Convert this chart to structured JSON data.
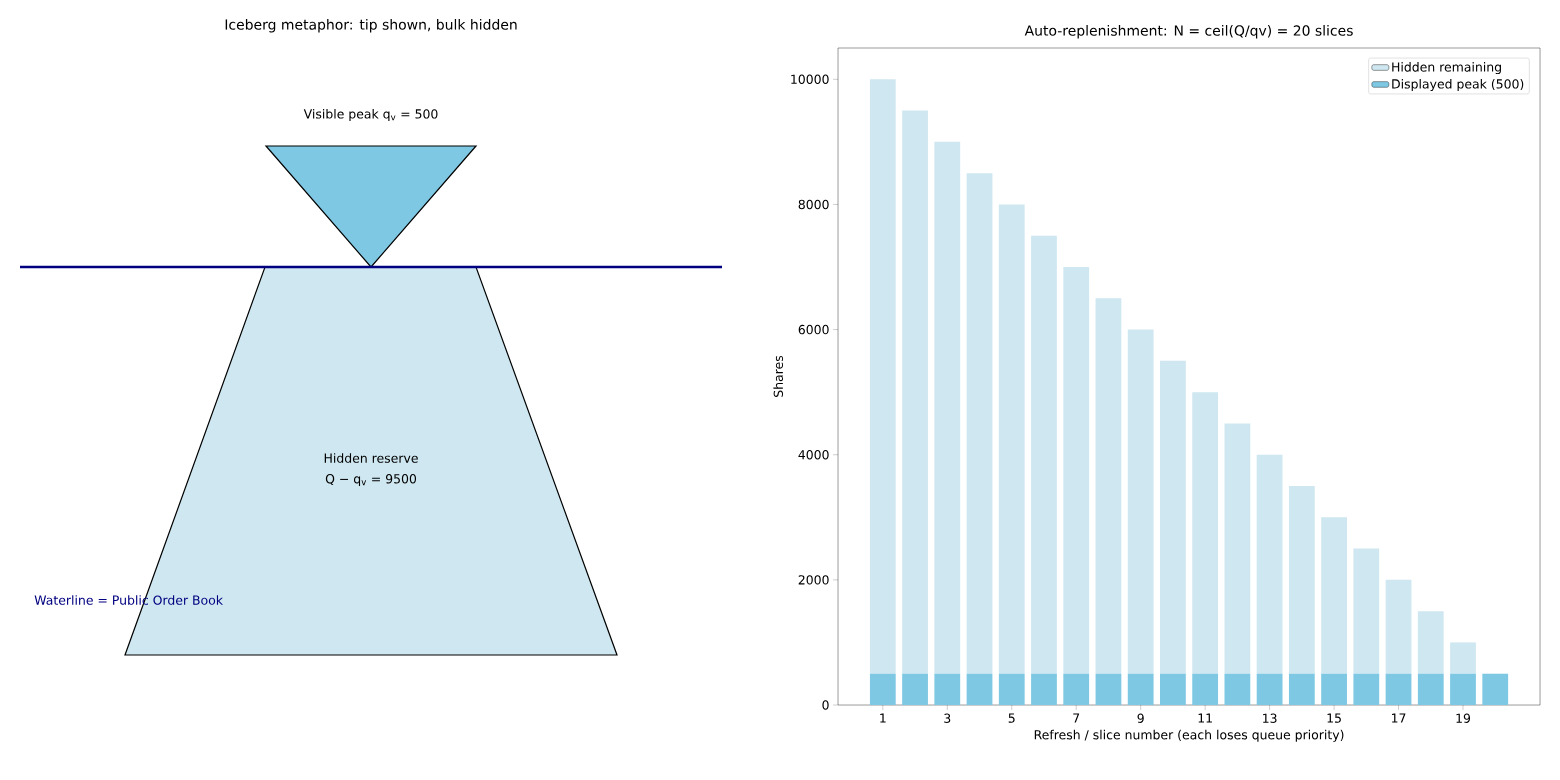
{
  "chart_data": [
    {
      "type": "other",
      "title": "Iceberg metaphor: tip shown, bulk hidden",
      "annotations": [
        "Visible peak q$_{v}$ = 500",
        "Hidden reserve",
        "Q − q$_{v}$ = 9500",
        "Waterline = Public Order Book"
      ]
    },
    {
      "type": "bar",
      "stacked": true,
      "title": "Auto-replenishment: N = ceil(Q/qv) = 20 slices",
      "xlabel": "Refresh / slice number (each loses queue priority)",
      "ylabel": "Shares",
      "x": [
        1,
        2,
        3,
        4,
        5,
        6,
        7,
        8,
        9,
        10,
        11,
        12,
        13,
        14,
        15,
        16,
        17,
        18,
        19,
        20
      ],
      "xlim": [
        -0.39,
        21.39
      ],
      "xticks": [
        1,
        3,
        5,
        7,
        9,
        11,
        13,
        15,
        17,
        19
      ],
      "ylim": [
        0,
        10500
      ],
      "yticks": [
        0,
        2000,
        4000,
        6000,
        8000,
        10000
      ],
      "legend": "top right",
      "series": [
        {
          "name": "Displayed peak (500)",
          "color": "#7ec8e3",
          "values": [
            500,
            500,
            500,
            500,
            500,
            500,
            500,
            500,
            500,
            500,
            500,
            500,
            500,
            500,
            500,
            500,
            500,
            500,
            500,
            500
          ]
        },
        {
          "name": "Hidden remaining",
          "color": "#cfe7f0",
          "values": [
            9500,
            9000,
            8500,
            8000,
            7500,
            7000,
            6500,
            6000,
            5500,
            5000,
            4500,
            4000,
            3500,
            3000,
            2500,
            2000,
            1500,
            1000,
            500,
            0
          ]
        }
      ]
    }
  ]
}
